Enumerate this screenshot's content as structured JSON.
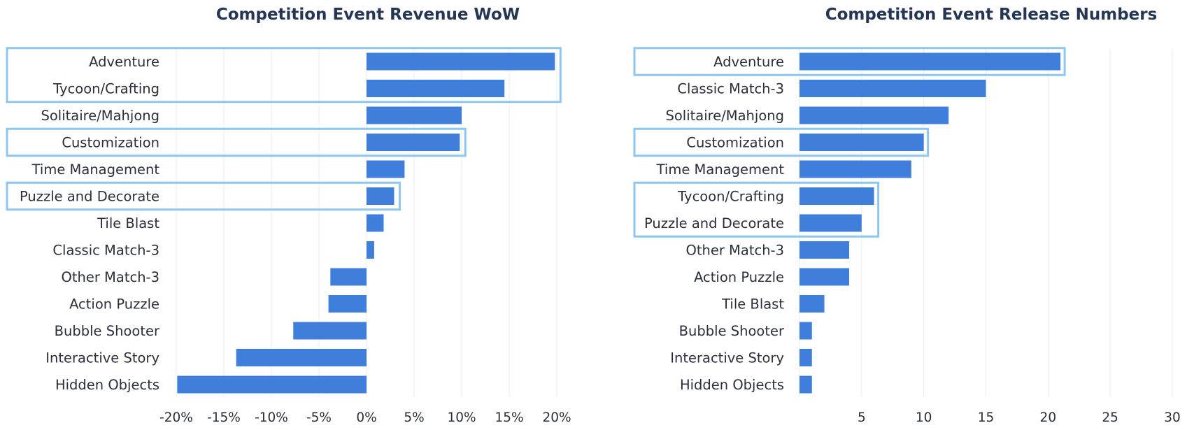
{
  "colors": {
    "bar": "#3f7fdb",
    "highlight_box": "#8ec6f0",
    "title": "#243654",
    "text": "#2a2f3a",
    "gridline": "#e9ecef"
  },
  "chart_data": [
    {
      "type": "bar",
      "orientation": "horizontal",
      "title": "Competition Event Revenue WoW",
      "xlabel": "",
      "ylabel": "",
      "categories": [
        "Adventure",
        "Tycoon/Crafting",
        "Solitaire/Mahjong",
        "Customization",
        "Time Management",
        "Puzzle and Decorate",
        "Tile Blast",
        "Classic Match-3",
        "Other Match-3",
        "Action Puzzle",
        "Bubble Shooter",
        "Interactive Story",
        "Hidden Objects"
      ],
      "values": [
        0.198,
        0.145,
        0.1,
        0.098,
        0.04,
        0.029,
        0.018,
        0.008,
        -0.038,
        -0.04,
        -0.077,
        -0.137,
        -0.199
      ],
      "value_format": "percent",
      "xlim": [
        -0.2,
        0.2
      ],
      "xticks": [
        -0.2,
        -0.15,
        -0.1,
        -0.05,
        0,
        0.05,
        0.1,
        0.15,
        0.2
      ],
      "xtick_labels": [
        "-20%",
        "-15%",
        "-10%",
        "-5%",
        "0%",
        "5%",
        "10%",
        "15%",
        "20%"
      ],
      "grid": "vertical gridlines at ticks",
      "highlighted_groups": [
        [
          "Adventure",
          "Tycoon/Crafting"
        ],
        [
          "Customization"
        ],
        [
          "Puzzle and Decorate"
        ]
      ]
    },
    {
      "type": "bar",
      "orientation": "horizontal",
      "title": "Competition Event Release Numbers",
      "xlabel": "",
      "ylabel": "",
      "categories": [
        "Adventure",
        "Classic Match-3",
        "Solitaire/Mahjong",
        "Customization",
        "Time Management",
        "Tycoon/Crafting",
        "Puzzle and Decorate",
        "Other Match-3",
        "Action Puzzle",
        "Tile Blast",
        "Bubble Shooter",
        "Interactive Story",
        "Hidden Objects"
      ],
      "values": [
        21,
        15,
        12,
        10,
        9,
        6,
        5,
        4,
        4,
        2,
        1,
        1,
        1
      ],
      "value_format": "number",
      "xlim": [
        0,
        30
      ],
      "xticks": [
        5,
        10,
        15,
        20,
        25,
        30
      ],
      "xtick_labels": [
        "5",
        "10",
        "15",
        "20",
        "25",
        "30"
      ],
      "grid": "vertical gridlines at ticks",
      "highlighted_groups": [
        [
          "Adventure"
        ],
        [
          "Customization"
        ],
        [
          "Tycoon/Crafting",
          "Puzzle and Decorate"
        ]
      ]
    }
  ]
}
